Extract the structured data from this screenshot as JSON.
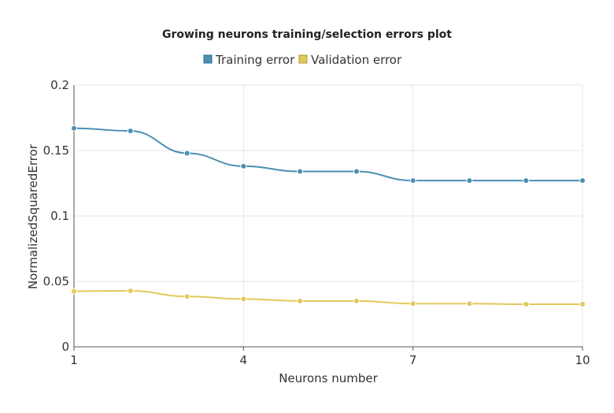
{
  "chart_data": {
    "type": "line",
    "title": "Growing neurons training/selection errors plot",
    "xlabel": "Neurons number",
    "ylabel": "NormalizedSquaredError",
    "x": [
      1,
      2,
      3,
      4,
      5,
      6,
      7,
      8,
      9,
      10
    ],
    "xlim": [
      1,
      10
    ],
    "ylim": [
      0,
      0.2
    ],
    "x_ticks": [
      "1",
      "4",
      "7",
      "10"
    ],
    "x_tick_values": [
      1,
      4,
      7,
      10
    ],
    "y_ticks": [
      "0",
      "0.05",
      "0.1",
      "0.15",
      "0.2"
    ],
    "y_tick_values": [
      0,
      0.05,
      0.1,
      0.15,
      0.2
    ],
    "grid": true,
    "legend_position": "top-center",
    "series": [
      {
        "name": "Training error",
        "color": "#4a8fb4",
        "values": [
          0.167,
          0.165,
          0.148,
          0.138,
          0.134,
          0.134,
          0.127,
          0.127,
          0.127,
          0.127
        ]
      },
      {
        "name": "Validation error",
        "color": "#e3c85a",
        "values": [
          0.0425,
          0.0428,
          0.0385,
          0.0365,
          0.035,
          0.035,
          0.033,
          0.033,
          0.0325,
          0.0325
        ]
      }
    ]
  }
}
